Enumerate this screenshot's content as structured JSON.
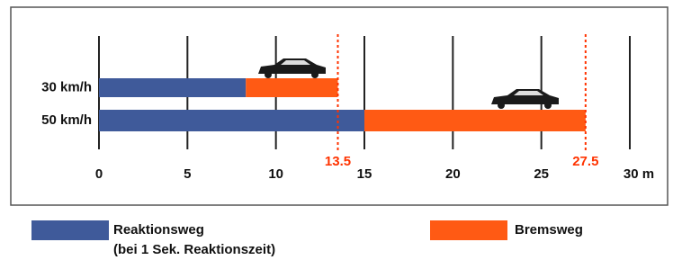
{
  "chart_data": {
    "type": "stacked-bar-horizontal",
    "categories": [
      "30 km/h",
      "50 km/h"
    ],
    "series": [
      {
        "name": "Reaktionsweg",
        "color": "#3f5a9a",
        "values": [
          8.3,
          15
        ]
      },
      {
        "name": "Bremsweg",
        "color": "#ff5a14",
        "values": [
          5.2,
          12.5
        ]
      }
    ],
    "legend_note": "(bei 1 Sek. Reaktionszeit)",
    "xlim": [
      0,
      30
    ],
    "xticks": [
      0,
      5,
      10,
      15,
      20,
      25,
      {
        "value": 30,
        "label": "30 m"
      }
    ],
    "annotations": [
      {
        "value": 13.5,
        "label": "13.5"
      },
      {
        "value": 27.5,
        "label": "27.5"
      }
    ],
    "annotation_color": "#ff3300",
    "grid": true,
    "legend": "bottom"
  }
}
